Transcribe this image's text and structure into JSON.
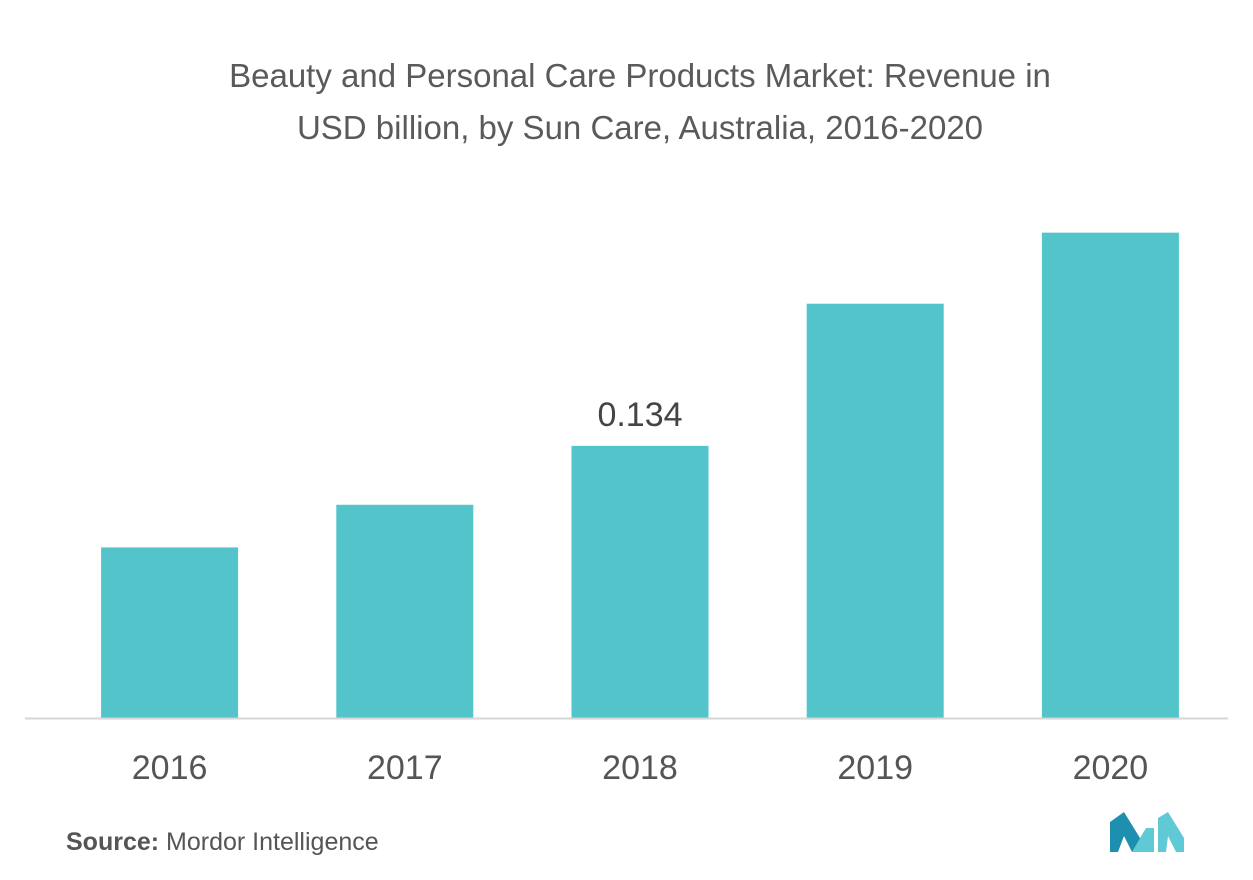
{
  "chart_data": {
    "type": "bar",
    "title_line1": "Beauty and Personal Care Products Market: Revenue in",
    "title_line2": "USD billion, by Sun Care, Australia, 2016-2020",
    "categories": [
      "2016",
      "2017",
      "2018",
      "2019",
      "2020"
    ],
    "values": [
      0.084,
      0.105,
      0.134,
      0.204,
      0.239
    ],
    "data_labels": [
      "",
      "",
      "0.134",
      "",
      ""
    ],
    "xlabel": "",
    "ylabel": "",
    "ylim": [
      0,
      0.26
    ],
    "grid": false,
    "legend": "none",
    "bar_color": "#52c4ca",
    "axis_color": "#d6d6d6"
  },
  "footer": {
    "source_key": "Source:",
    "source_value": "Mordor Intelligence"
  },
  "brand": {
    "logo_icon": "mordor-intelligence-logo-icon",
    "logo_colors": [
      "#1f8fb0",
      "#5fc9d6"
    ]
  }
}
